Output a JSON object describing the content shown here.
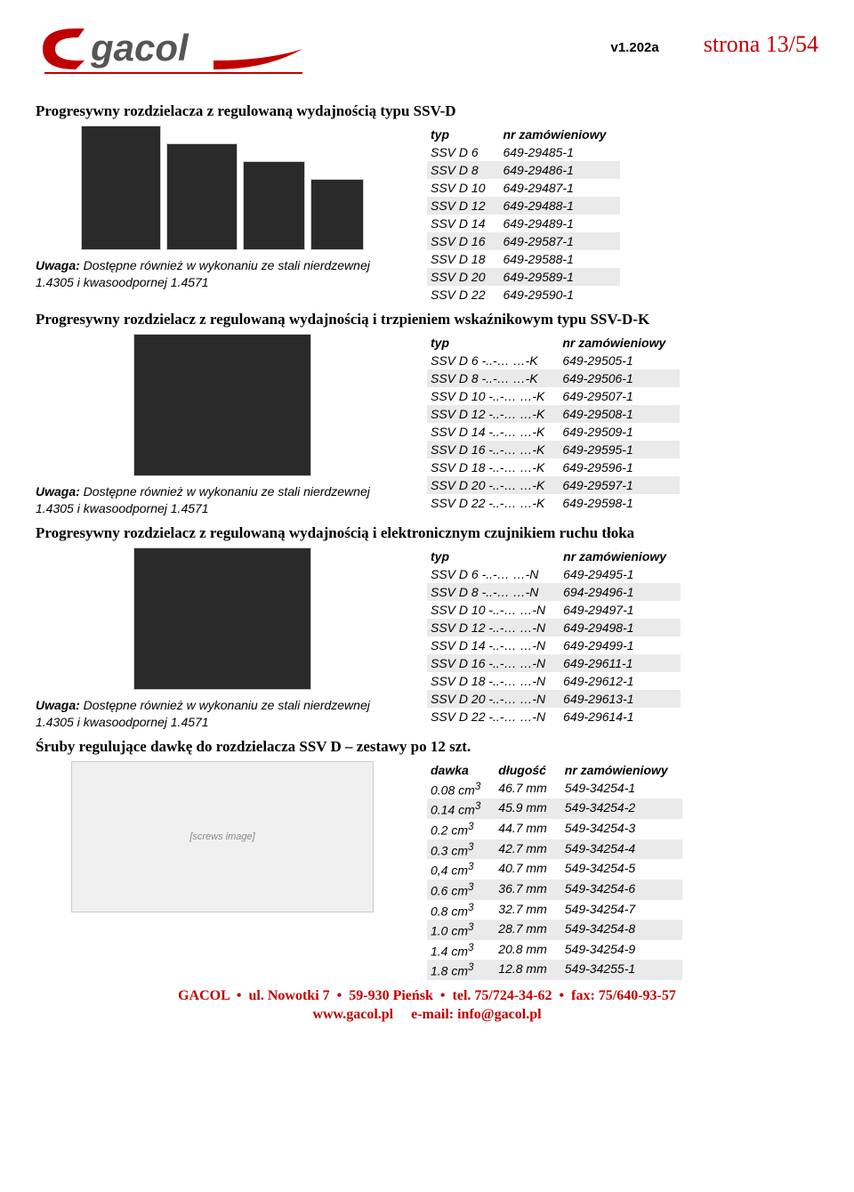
{
  "header": {
    "version": "v1.202a",
    "page_label": "strona 13/54",
    "logo_text": "gacol"
  },
  "colors": {
    "accent_red": "#c00000",
    "shade_bg": "#eaeaea"
  },
  "sections": [
    {
      "title": "Progresywny rozdzielacza z regulowaną wydajnością typu SSV-D",
      "note_prefix": "Uwaga:",
      "note_text": " Dostępne również w wykonaniu ze stali nierdzewnej 1.4305 i kwasoodpornej 1.4571",
      "img_count": 4,
      "table": {
        "headers": [
          "typ",
          "nr zamówieniowy"
        ],
        "rows": [
          {
            "cells": [
              "SSV D 6",
              "649-29485-1"
            ],
            "shade": false
          },
          {
            "cells": [
              "SSV D 8",
              "649-29486-1"
            ],
            "shade": true
          },
          {
            "cells": [
              "SSV D 10",
              "649-29487-1"
            ],
            "shade": false
          },
          {
            "cells": [
              "SSV D 12",
              "649-29488-1"
            ],
            "shade": true
          },
          {
            "cells": [
              "SSV D 14",
              "649-29489-1"
            ],
            "shade": false
          },
          {
            "cells": [
              "SSV D 16",
              "649-29587-1"
            ],
            "shade": true
          },
          {
            "cells": [
              "SSV D 18",
              "649-29588-1"
            ],
            "shade": false
          },
          {
            "cells": [
              "SSV D 20",
              "649-29589-1"
            ],
            "shade": true
          },
          {
            "cells": [
              "SSV D 22",
              "649-29590-1"
            ],
            "shade": false
          }
        ]
      }
    },
    {
      "title": "Progresywny rozdzielacz z regulowaną wydajnością i trzpieniem wskaźnikowym typu SSV-D-K",
      "note_prefix": "Uwaga:",
      "note_text": " Dostępne również w wykonaniu ze stali nierdzewnej 1.4305 i kwasoodpornej 1.4571",
      "img_count": 1,
      "table": {
        "headers": [
          "typ",
          "nr zamówieniowy"
        ],
        "rows": [
          {
            "cells": [
              "SSV D 6  -..-… …-K",
              "649-29505-1"
            ],
            "shade": false
          },
          {
            "cells": [
              "SSV D 8  -..-… …-K",
              "649-29506-1"
            ],
            "shade": true
          },
          {
            "cells": [
              "SSV D 10 -..-… …-K",
              "649-29507-1"
            ],
            "shade": false
          },
          {
            "cells": [
              "SSV D 12 -..-… …-K",
              "649-29508-1"
            ],
            "shade": true
          },
          {
            "cells": [
              "SSV D 14 -..-… …-K",
              "649-29509-1"
            ],
            "shade": false
          },
          {
            "cells": [
              "SSV D 16 -..-… …-K",
              "649-29595-1"
            ],
            "shade": true
          },
          {
            "cells": [
              "SSV D 18 -..-… …-K",
              "649-29596-1"
            ],
            "shade": false
          },
          {
            "cells": [
              "SSV D 20 -..-… …-K",
              "649-29597-1"
            ],
            "shade": true
          },
          {
            "cells": [
              "SSV D 22 -..-… …-K",
              "649-29598-1"
            ],
            "shade": false
          }
        ]
      }
    },
    {
      "title": "Progresywny rozdzielacz z regulowaną wydajnością i elektronicznym czujnikiem ruchu tłoka",
      "note_prefix": "Uwaga:",
      "note_text": " Dostępne również w wykonaniu ze stali nierdzewnej 1.4305 i kwasoodpornej 1.4571",
      "img_count": 1,
      "table": {
        "headers": [
          "typ",
          "nr zamówieniowy"
        ],
        "rows": [
          {
            "cells": [
              "SSV D 6  -..-… …-N",
              "649-29495-1"
            ],
            "shade": false
          },
          {
            "cells": [
              "SSV D 8  -..-… …-N",
              "694-29496-1"
            ],
            "shade": true
          },
          {
            "cells": [
              "SSV D 10 -..-… …-N",
              "649-29497-1"
            ],
            "shade": false
          },
          {
            "cells": [
              "SSV D 12 -..-… …-N",
              "649-29498-1"
            ],
            "shade": true
          },
          {
            "cells": [
              "SSV D 14 -..-… …-N",
              "649-29499-1"
            ],
            "shade": false
          },
          {
            "cells": [
              "SSV D 16 -..-… …-N",
              "649-29611-1"
            ],
            "shade": true
          },
          {
            "cells": [
              "SSV D 18 -..-… …-N",
              "649-29612-1"
            ],
            "shade": false
          },
          {
            "cells": [
              "SSV D 20 -..-… …-N",
              "649-29613-1"
            ],
            "shade": true
          },
          {
            "cells": [
              "SSV D 22 -..-… …-N",
              "649-29614-1"
            ],
            "shade": false
          }
        ]
      }
    },
    {
      "title": "Śruby regulujące dawkę do rozdzielacza SSV D – zestawy po 12 szt.",
      "note_prefix": "",
      "note_text": "",
      "img_count": 1,
      "table": {
        "headers": [
          "dawka",
          "długość",
          "nr zamówieniowy"
        ],
        "rows": [
          {
            "cells": [
              "0.08 cm³",
              "46.7 mm",
              "549-34254-1"
            ],
            "shade": false
          },
          {
            "cells": [
              "0.14 cm³",
              "45.9 mm",
              "549-34254-2"
            ],
            "shade": true
          },
          {
            "cells": [
              "0.2 cm³",
              "44.7 mm",
              "549-34254-3"
            ],
            "shade": false
          },
          {
            "cells": [
              "0.3 cm³",
              "42.7 mm",
              "549-34254-4"
            ],
            "shade": true
          },
          {
            "cells": [
              "0,4 cm³",
              "40.7 mm",
              "549-34254-5"
            ],
            "shade": false
          },
          {
            "cells": [
              "0.6 cm³",
              "36.7 mm",
              "549-34254-6"
            ],
            "shade": true
          },
          {
            "cells": [
              "0.8 cm³",
              "32.7 mm",
              "549-34254-7"
            ],
            "shade": false
          },
          {
            "cells": [
              "1.0 cm³",
              "28.7 mm",
              "549-34254-8"
            ],
            "shade": true
          },
          {
            "cells": [
              "1.4 cm³",
              "20.8 mm",
              "549-34254-9"
            ],
            "shade": false
          },
          {
            "cells": [
              "1.8 cm³",
              "12.8 mm",
              "549-34255-1"
            ],
            "shade": true
          }
        ]
      }
    }
  ],
  "footer": {
    "line1_parts": [
      "GACOL",
      "ul. Nowotki 7",
      "59-930 Pieńsk",
      "tel. 75/724-34-62",
      "fax: 75/640-93-57"
    ],
    "line2_web": "www.gacol.pl",
    "line2_email_label": "e-mail: ",
    "line2_email": "info@gacol.pl"
  }
}
